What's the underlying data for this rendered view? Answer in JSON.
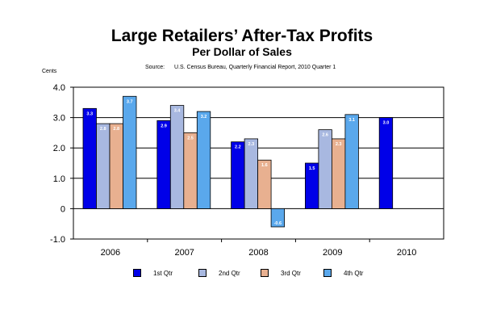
{
  "chart_data": {
    "type": "bar",
    "title": "Large Retailers’ After-Tax Profits",
    "subtitle": "Per Dollar of Sales",
    "source_label": "Source:",
    "source_text": "U.S. Census Bureau, Quarterly Financial Report, 2010 Quarter 1",
    "ylabel": "Cents",
    "xlabel": "",
    "categories": [
      "2006",
      "2007",
      "2008",
      "2009",
      "2010"
    ],
    "ylim": [
      -1.0,
      4.0
    ],
    "yticks": [
      4.0,
      3.0,
      2.0,
      1.0,
      0,
      -1.0
    ],
    "ytick_labels": [
      "4.0",
      "3.0",
      "2.0",
      "1.0",
      "0",
      "-1.0"
    ],
    "grid": true,
    "legend_position": "bottom",
    "series": [
      {
        "name": "1st Qtr",
        "color": "#0000e8",
        "values": [
          3.3,
          2.9,
          2.2,
          1.5,
          3.0
        ],
        "labels": [
          "3.3",
          "2.9",
          "2.2",
          "1.5",
          "3.0"
        ]
      },
      {
        "name": "2nd Qtr",
        "color": "#a8b8e0",
        "values": [
          2.8,
          3.4,
          2.3,
          2.6,
          null
        ],
        "labels": [
          "2.8",
          "3.4",
          "2.3",
          "2.6",
          null
        ]
      },
      {
        "name": "3rd Qtr",
        "color": "#e8b090",
        "values": [
          2.8,
          2.5,
          1.6,
          2.3,
          null
        ],
        "labels": [
          "2.8",
          "2.5",
          "1.6",
          "2.3",
          null
        ]
      },
      {
        "name": "4th Qtr",
        "color": "#5aa8ec",
        "values": [
          3.7,
          3.2,
          -0.6,
          3.1,
          null
        ],
        "labels": [
          "3.7",
          "3.2",
          "-0.6",
          "3.1",
          null
        ]
      }
    ]
  }
}
